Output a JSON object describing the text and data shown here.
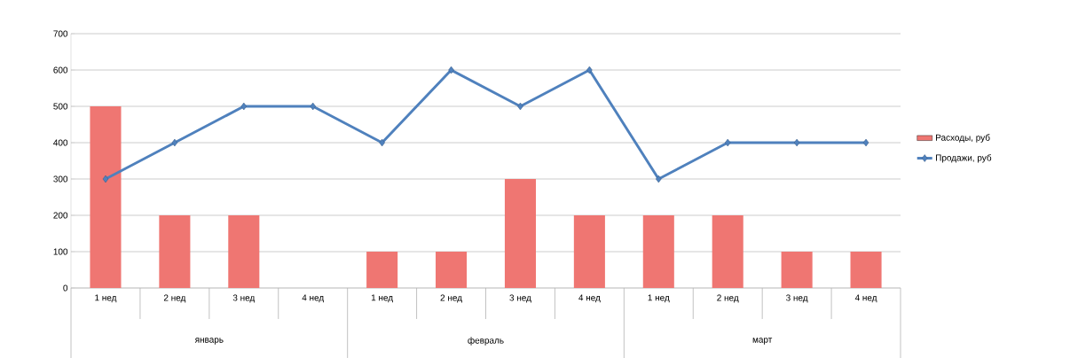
{
  "chart_data": {
    "type": "bar",
    "categories": [
      "1 нед",
      "2 нед",
      "3 нед",
      "4 нед",
      "1 нед",
      "2 нед",
      "3 нед",
      "4 нед",
      "1 нед",
      "2 нед",
      "3 нед",
      "4 нед"
    ],
    "series": [
      {
        "name": "Расходы, руб",
        "color": "#ef7672",
        "values": [
          500,
          200,
          200,
          0,
          100,
          100,
          300,
          200,
          200,
          200,
          100,
          100
        ]
      },
      {
        "name": "Продажи, руб",
        "type": "line",
        "color": "#4f81bd",
        "marker": "diamond",
        "values": [
          300,
          400,
          500,
          500,
          400,
          600,
          500,
          600,
          300,
          400,
          400,
          400
        ]
      }
    ],
    "annotations": [
      "январь",
      "февраль",
      "март"
    ],
    "ylim": [
      0,
      700
    ],
    "yticks": [
      0,
      100,
      200,
      300,
      400,
      500,
      600,
      700
    ],
    "grid": "y",
    "legend": "right"
  }
}
